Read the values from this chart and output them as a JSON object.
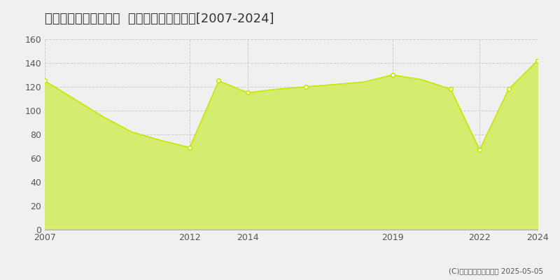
{
  "title": "相模原市中央区氷川町  マンション価格推移[2007-2024]",
  "years": [
    2007,
    2008,
    2009,
    2010,
    2011,
    2012,
    2013,
    2014,
    2015,
    2016,
    2017,
    2018,
    2019,
    2020,
    2021,
    2022,
    2023,
    2024
  ],
  "values": [
    125,
    110,
    95,
    82,
    75,
    69,
    125,
    115,
    118,
    120,
    122,
    124,
    130,
    126,
    118,
    67,
    118,
    142
  ],
  "line_color": "#c8e600",
  "fill_color": "#d4ed6e",
  "bg_color": "#f0f0f0",
  "plot_bg": "#f0f0f0",
  "grid_color": "#cccccc",
  "ylim": [
    0,
    160
  ],
  "yticks": [
    0,
    20,
    40,
    60,
    80,
    100,
    120,
    140,
    160
  ],
  "xticks": [
    2007,
    2012,
    2014,
    2019,
    2022,
    2024
  ],
  "marker_years": [
    2007,
    2012,
    2013,
    2014,
    2016,
    2019,
    2021,
    2022,
    2023,
    2024
  ],
  "marker_values": [
    125,
    69,
    125,
    115,
    120,
    130,
    118,
    67,
    118,
    142
  ],
  "copyright_text": "(C)土地価格ドットコム 2025-05-05",
  "title_fontsize": 13,
  "tick_fontsize": 9,
  "legend_fontsize": 9
}
